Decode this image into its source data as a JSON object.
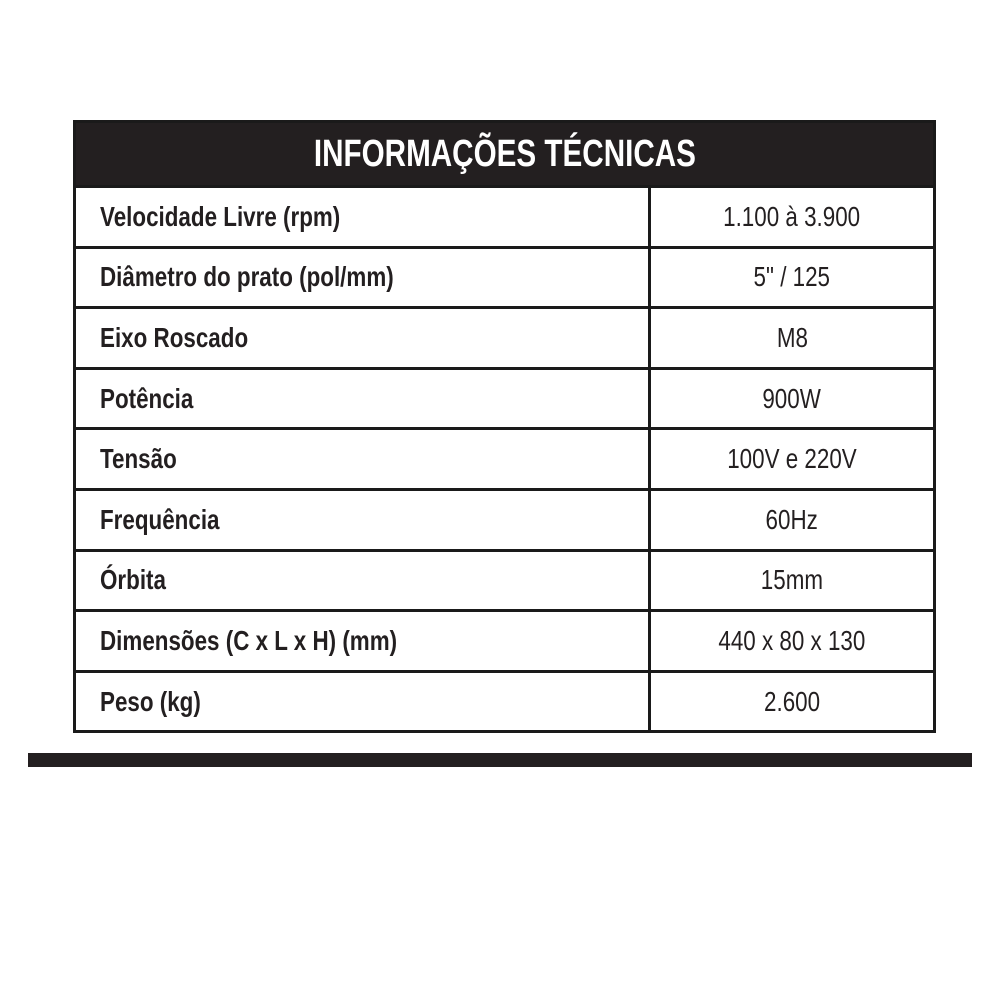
{
  "title": "INFORMAÇÕES TÉCNICAS",
  "rows": [
    {
      "label": "Velocidade Livre (rpm)",
      "value": "1.100 à 3.900"
    },
    {
      "label": "Diâmetro do prato (pol/mm)",
      "value": "5\" / 125"
    },
    {
      "label": "Eixo Roscado",
      "value": "M8"
    },
    {
      "label": "Potência",
      "value": "900W"
    },
    {
      "label": "Tensão",
      "value": "100V e 220V"
    },
    {
      "label": "Frequência",
      "value": "60Hz"
    },
    {
      "label": "Órbita",
      "value": "15mm"
    },
    {
      "label": "Dimensões (C x L x H) (mm)",
      "value": "440 x 80 x 130"
    },
    {
      "label": "Peso (kg)",
      "value": "2.600"
    }
  ]
}
